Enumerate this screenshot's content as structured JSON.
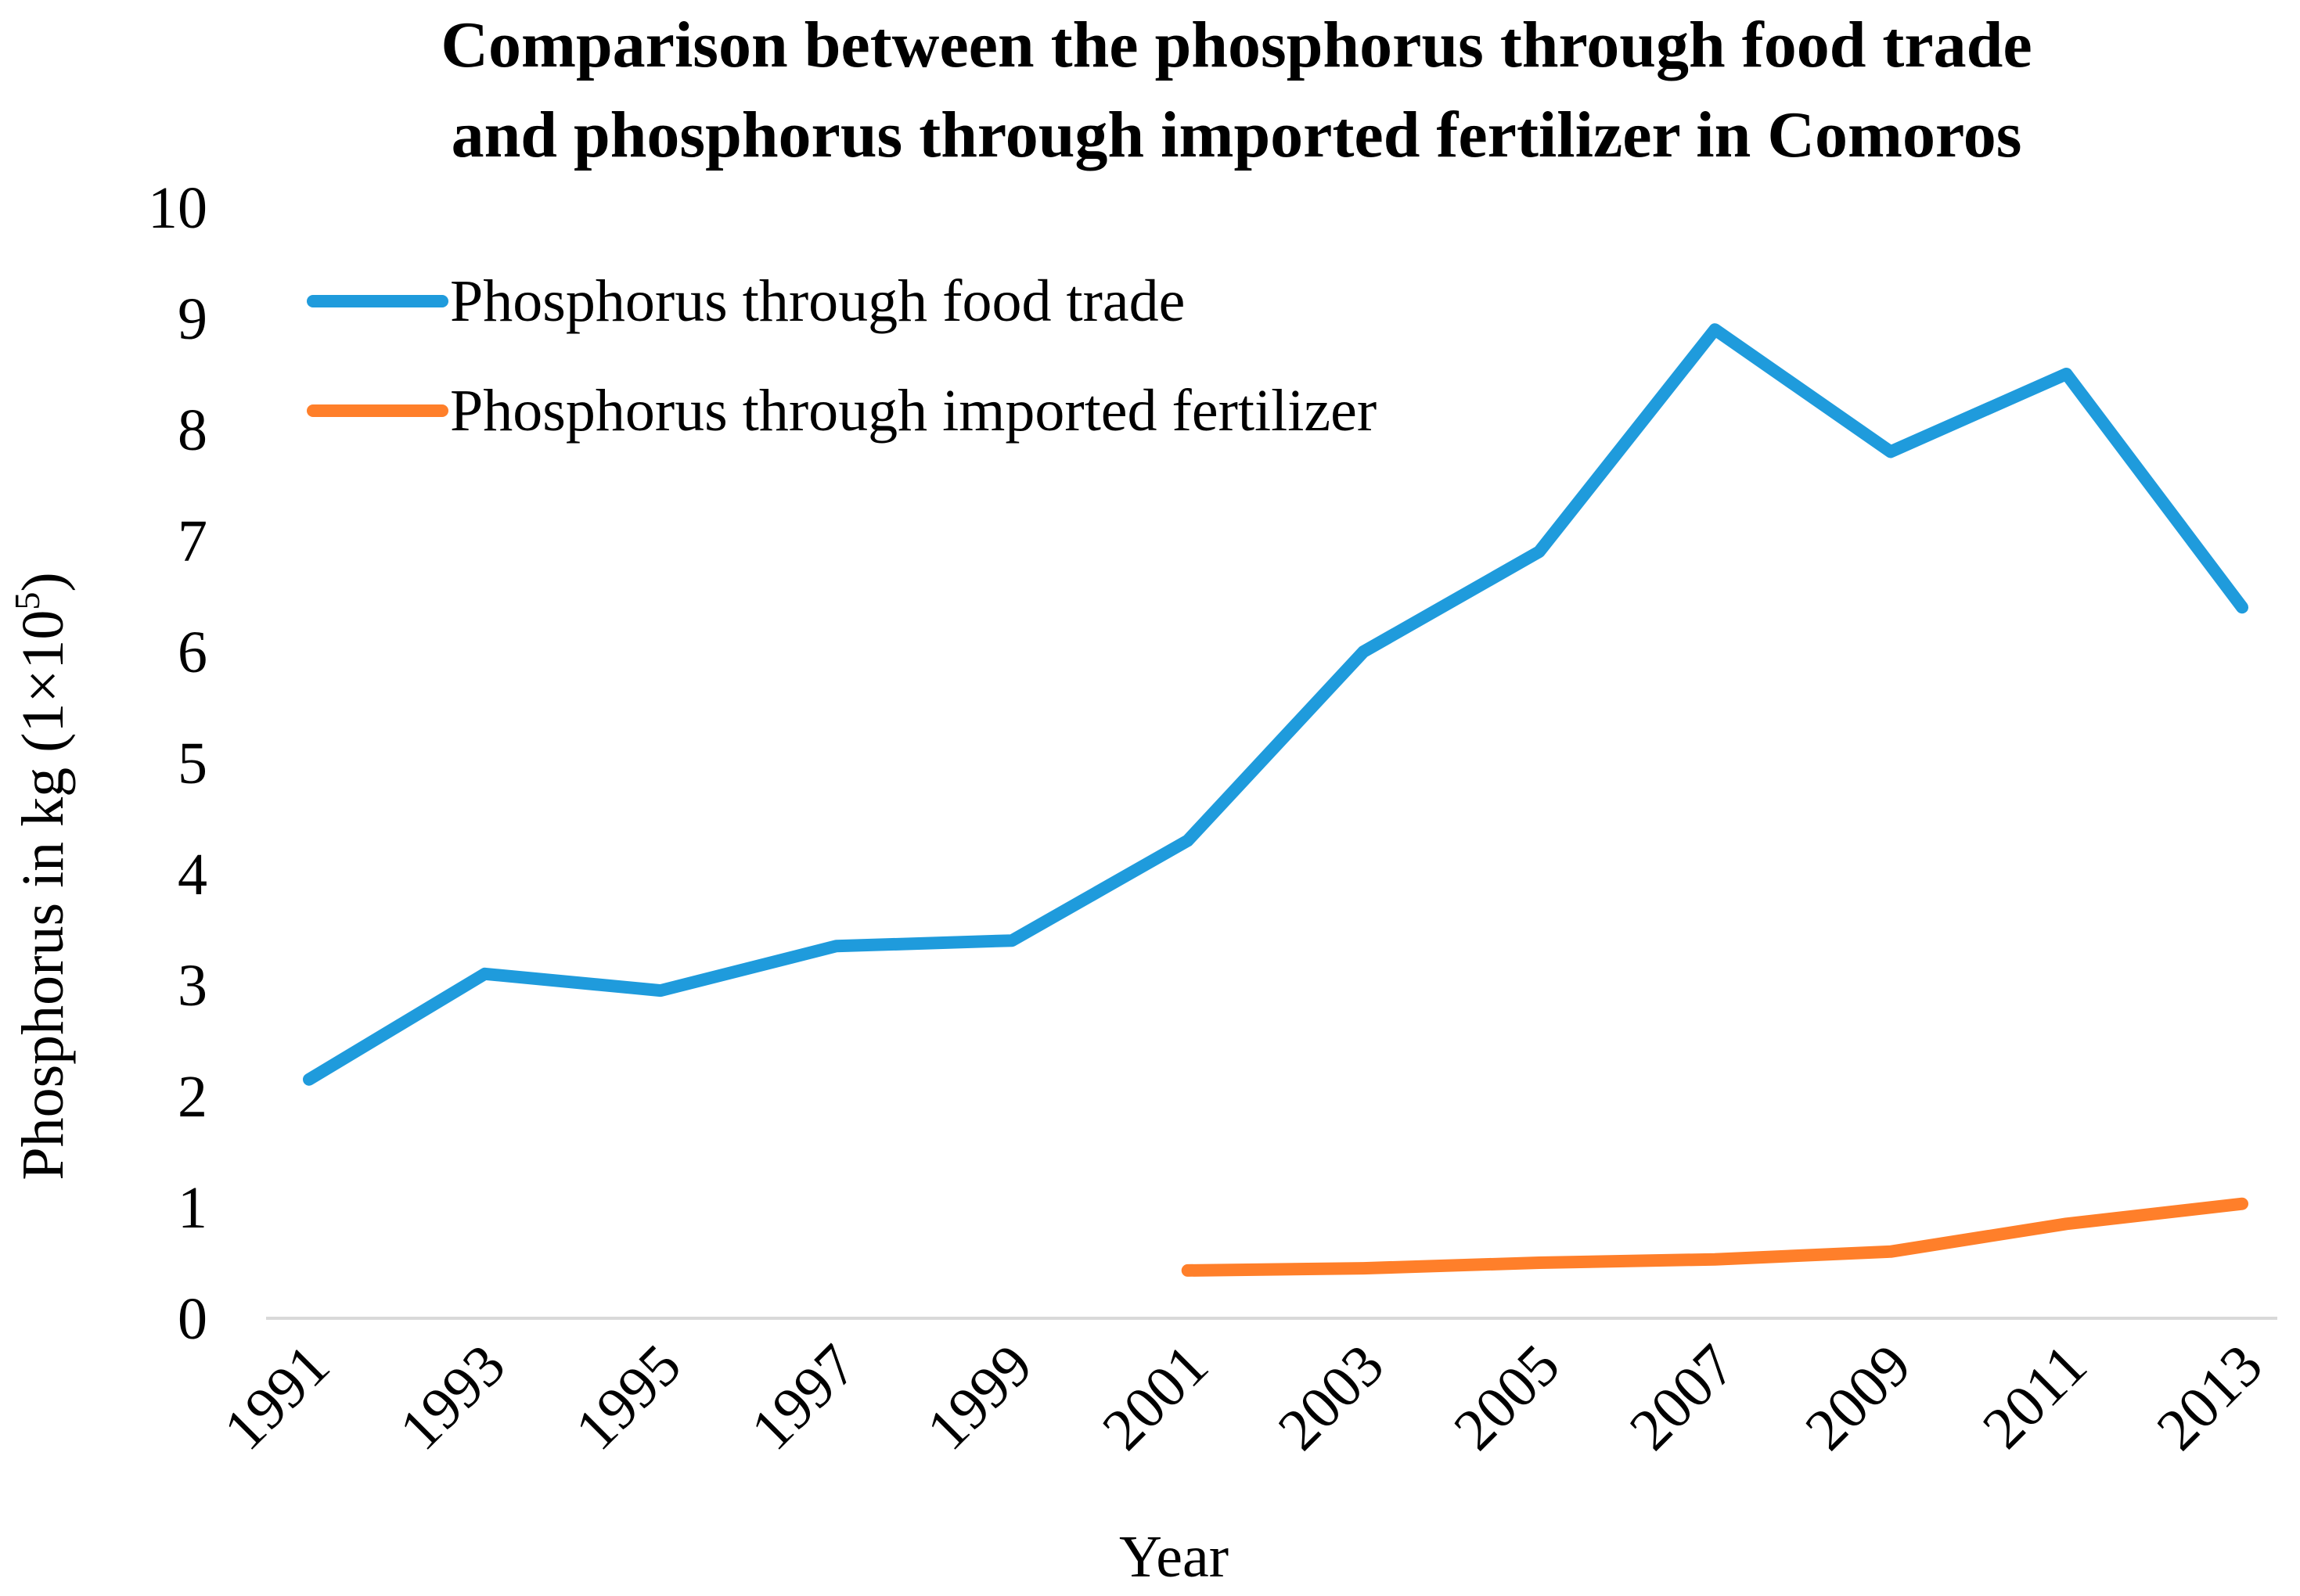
{
  "chart_data": {
    "type": "line",
    "title": [
      "Comparison between the phosphorus through food trade",
      "and phosphorus through imported fertilizer in Comoros"
    ],
    "xlabel": "Year",
    "ylabel": "Phosphorus in kg (1×10",
    "ylabel_superscript": "5",
    "ylabel_close": ")",
    "categories": [
      "1991",
      "1993",
      "1995",
      "1997",
      "1999",
      "2001",
      "2003",
      "2005",
      "2007",
      "2009",
      "2011",
      "2013"
    ],
    "yticks": [
      0,
      1,
      2,
      3,
      4,
      5,
      6,
      7,
      8,
      9,
      10
    ],
    "ylim": [
      0,
      10
    ],
    "grid": false,
    "legend_position": "top-left",
    "series": [
      {
        "name": "Phosphorus through food trade",
        "color": "#1f9bdc",
        "values": [
          2.15,
          3.1,
          2.95,
          3.35,
          3.4,
          4.3,
          6.0,
          6.9,
          8.9,
          7.8,
          8.5,
          6.4
        ]
      },
      {
        "name": "Phosphorus through imported fertilizer",
        "color": "#ff7f2a",
        "values": [
          null,
          null,
          null,
          null,
          null,
          0.43,
          0.45,
          0.5,
          0.53,
          0.6,
          0.85,
          1.03
        ]
      }
    ]
  }
}
